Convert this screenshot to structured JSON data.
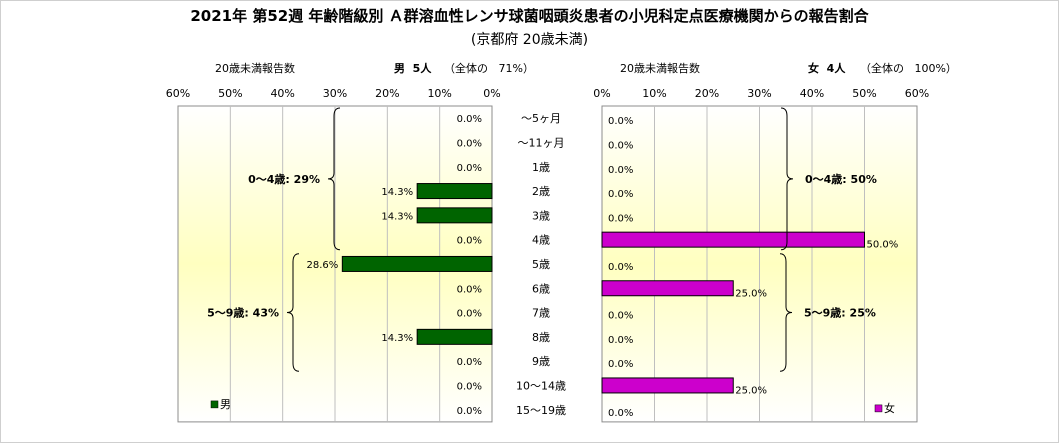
{
  "title": "2021年 第52週 年齢階級別 Ａ群溶血性レンサ球菌咽頭炎患者の小児科定点医療機関からの報告割合",
  "subtitle": "(京都府 20歳未満)",
  "male_header": {
    "count_label": "20歳未満報告数",
    "sex_count": "男  5人",
    "share": "（全体の   71%）"
  },
  "female_header": {
    "count_label": "20歳未満報告数",
    "sex_count": "女  4人",
    "share": "（全体の   100%）"
  },
  "colors": {
    "male_bar": "#006400",
    "female_bar": "#cc00cc",
    "plot_bg_top": "#ffffff",
    "plot_bg_mid": "#ffffc0"
  },
  "chart_data": [
    {
      "type": "bar",
      "orientation": "horizontal",
      "direction": "right-to-left",
      "categories": [
        "～5ヶ月",
        "～11ヶ月",
        "1歳",
        "2歳",
        "3歳",
        "4歳",
        "5歳",
        "6歳",
        "7歳",
        "8歳",
        "9歳",
        "10～14歳",
        "15～19歳"
      ],
      "series": [
        {
          "name": "男",
          "values": [
            0,
            0,
            0,
            14.3,
            14.3,
            0,
            28.6,
            0,
            0,
            14.3,
            0,
            0,
            0
          ]
        }
      ],
      "data_labels": [
        "0.0%",
        "0.0%",
        "0.0%",
        "14.3%",
        "14.3%",
        "0.0%",
        "28.6%",
        "0.0%",
        "0.0%",
        "14.3%",
        "0.0%",
        "0.0%",
        "0.0%"
      ],
      "x_ticks": [
        "60%",
        "50%",
        "40%",
        "30%",
        "20%",
        "10%",
        "0%"
      ],
      "xlim": [
        0,
        60
      ],
      "grid": "vertical",
      "legend_position": "bottom-left",
      "annotations": [
        {
          "text": "0～4歳: 29%",
          "range": [
            "～5ヶ月",
            "4歳"
          ]
        },
        {
          "text": "5～9歳: 43%",
          "range": [
            "5歳",
            "9歳"
          ]
        }
      ]
    },
    {
      "type": "bar",
      "orientation": "horizontal",
      "direction": "left-to-right",
      "categories": [
        "～5ヶ月",
        "～11ヶ月",
        "1歳",
        "2歳",
        "3歳",
        "4歳",
        "5歳",
        "6歳",
        "7歳",
        "8歳",
        "9歳",
        "10～14歳",
        "15～19歳"
      ],
      "series": [
        {
          "name": "女",
          "values": [
            0,
            0,
            0,
            0,
            0,
            50,
            0,
            25,
            0,
            0,
            0,
            25,
            0
          ]
        }
      ],
      "data_labels": [
        "0.0%",
        "0.0%",
        "0.0%",
        "0.0%",
        "0.0%",
        "50.0%",
        "0.0%",
        "25.0%",
        "0.0%",
        "0.0%",
        "0.0%",
        "25.0%",
        "0.0%"
      ],
      "x_ticks": [
        "0%",
        "10%",
        "20%",
        "30%",
        "40%",
        "50%",
        "60%"
      ],
      "xlim": [
        0,
        60
      ],
      "grid": "vertical",
      "legend_position": "bottom-right",
      "annotations": [
        {
          "text": "0～4歳: 50%",
          "range": [
            "～5ヶ月",
            "4歳"
          ]
        },
        {
          "text": "5～9歳: 25%",
          "range": [
            "5歳",
            "9歳"
          ]
        }
      ]
    }
  ]
}
